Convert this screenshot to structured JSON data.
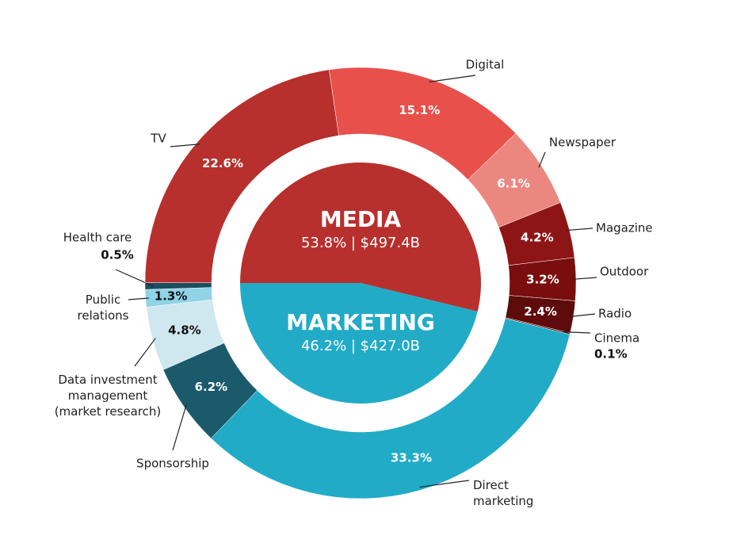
{
  "chart_data": {
    "type": "donut",
    "outer": {
      "categories": [
        "Digital",
        "Newspaper",
        "Magazine",
        "Outdoor",
        "Radio",
        "Cinema",
        "Direct\nmarketing",
        "Sponsorship",
        "Data investment\nmanagement\n(market research)",
        "Public\nrelations",
        "Health care",
        "TV"
      ],
      "values": [
        15.1,
        6.1,
        4.2,
        3.2,
        2.4,
        0.1,
        33.3,
        6.2,
        4.8,
        1.3,
        0.5,
        22.6
      ],
      "value_labels": [
        "15.1%",
        "6.1%",
        "4.2%",
        "3.2%",
        "2.4%",
        "0.1%",
        "33.3%",
        "6.2%",
        "4.8%",
        "1.3%",
        "0.5%",
        "22.6%"
      ],
      "colors": [
        "#e8504c",
        "#ec8780",
        "#8e1515",
        "#7a0e0f",
        "#5e0b0b",
        "#4a0909",
        "#21abc7",
        "#1b5a6b",
        "#cfe7ef",
        "#8fd4e7",
        "#1b4d60",
        "#b7302d"
      ]
    },
    "inner": {
      "categories": [
        "MEDIA",
        "MARKETING"
      ],
      "values": [
        53.8,
        46.2
      ],
      "value_labels": [
        "53.8% | $497.4B",
        "46.2% | $427.0B"
      ],
      "colors": [
        "#b7302d",
        "#21abc7"
      ]
    }
  }
}
